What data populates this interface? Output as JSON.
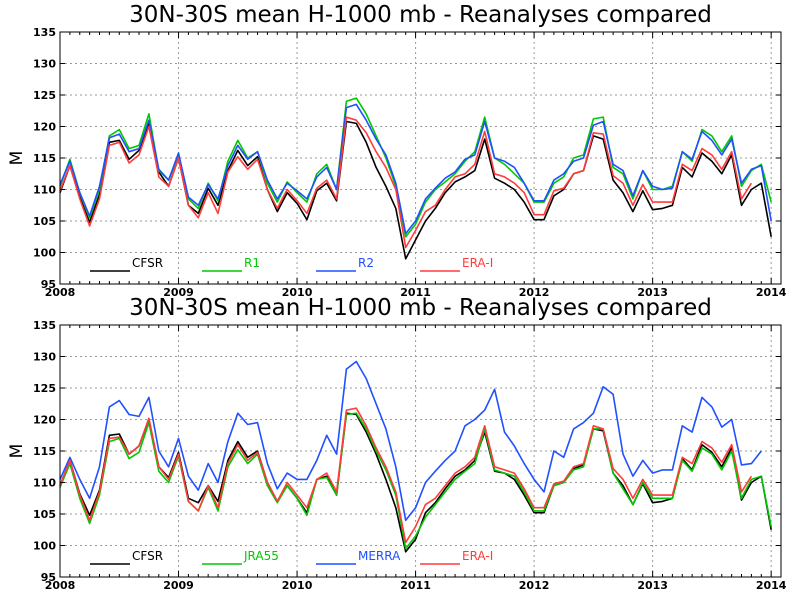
{
  "chart_data": [
    {
      "type": "line",
      "title": "30N-30S mean H-1000 mb - Reanalyses compared",
      "ylabel": "M",
      "xlabel": "",
      "ylim": [
        95,
        135
      ],
      "yticks": [
        95,
        100,
        105,
        110,
        115,
        120,
        125,
        130,
        135
      ],
      "xlim": [
        2008.0,
        2014.083
      ],
      "xticks": [
        2008,
        2009,
        2010,
        2011,
        2012,
        2013,
        2014
      ],
      "grid": true,
      "legend_position": "bottom-left",
      "x_start": 2008.0,
      "x_step_months": 1,
      "series": [
        {
          "name": "CFSR",
          "color": "#000000",
          "values": [
            109.5,
            113.8,
            108.8,
            104.8,
            109.2,
            117.5,
            117.8,
            114.8,
            116.2,
            120.5,
            112.8,
            110.5,
            115.0,
            107.5,
            106.2,
            110.2,
            107.5,
            113.0,
            116.2,
            113.8,
            115.2,
            110.0,
            106.5,
            109.5,
            107.8,
            105.2,
            109.8,
            111.0,
            108.2,
            120.8,
            120.5,
            117.5,
            113.5,
            110.5,
            107.0,
            99.0,
            102.0,
            105.0,
            107.0,
            109.5,
            111.2,
            112.0,
            113.0,
            118.0,
            111.8,
            111.0,
            110.0,
            108.0,
            105.2,
            105.2,
            109.0,
            110.0,
            112.5,
            113.0,
            118.5,
            118.0,
            111.5,
            109.5,
            106.5,
            109.8,
            106.8,
            107.0,
            107.5,
            113.5,
            112.0,
            115.8,
            114.5,
            112.5,
            115.5,
            107.5,
            110.0,
            111.0,
            102.5
          ]
        },
        {
          "name": "R1",
          "color": "#00c800",
          "values": [
            110.5,
            114.8,
            109.5,
            105.5,
            110.0,
            118.5,
            119.5,
            116.5,
            117.0,
            122.0,
            113.0,
            111.5,
            115.5,
            108.5,
            107.0,
            111.0,
            108.2,
            114.5,
            117.8,
            115.0,
            116.0,
            111.0,
            108.0,
            111.2,
            109.5,
            108.0,
            112.5,
            114.0,
            110.0,
            124.0,
            124.5,
            122.0,
            118.5,
            115.0,
            110.5,
            102.5,
            104.5,
            108.0,
            110.0,
            111.2,
            112.5,
            114.5,
            116.0,
            121.5,
            115.0,
            114.0,
            112.5,
            111.0,
            108.0,
            108.0,
            111.0,
            112.0,
            115.0,
            115.5,
            121.2,
            121.5,
            113.5,
            112.5,
            108.5,
            113.0,
            110.0,
            110.0,
            110.5,
            116.0,
            114.5,
            119.5,
            118.5,
            116.0,
            118.5,
            110.5,
            113.0,
            114.0,
            108.0
          ]
        },
        {
          "name": "R2",
          "color": "#2050ff",
          "values": [
            110.8,
            114.5,
            109.5,
            105.8,
            110.5,
            118.2,
            118.8,
            116.0,
            116.5,
            121.0,
            113.2,
            111.5,
            115.8,
            108.8,
            107.5,
            110.8,
            108.5,
            113.8,
            117.0,
            114.8,
            116.0,
            111.5,
            108.5,
            111.0,
            109.8,
            108.5,
            112.0,
            113.5,
            110.0,
            123.0,
            123.5,
            121.0,
            118.0,
            115.5,
            111.0,
            103.0,
            105.0,
            108.5,
            110.2,
            111.8,
            112.8,
            114.8,
            115.5,
            120.8,
            115.0,
            114.5,
            113.5,
            111.0,
            108.2,
            108.2,
            111.5,
            112.5,
            114.5,
            115.0,
            120.2,
            120.8,
            114.0,
            113.0,
            109.0,
            113.0,
            110.5,
            110.0,
            110.2,
            116.0,
            114.8,
            119.2,
            117.8,
            115.5,
            118.0,
            111.0,
            113.2,
            113.8,
            105.0
          ]
        },
        {
          "name": "ERA-I",
          "color": "#ff3c3c",
          "values": [
            109.8,
            113.8,
            108.5,
            104.2,
            108.5,
            117.0,
            117.5,
            114.2,
            115.5,
            120.0,
            112.0,
            110.5,
            115.0,
            107.5,
            105.5,
            109.5,
            106.2,
            112.8,
            115.2,
            113.2,
            114.8,
            110.0,
            107.0,
            110.0,
            108.2,
            106.2,
            110.2,
            111.5,
            108.5,
            121.5,
            121.0,
            119.0,
            116.0,
            113.5,
            110.0,
            100.8,
            103.5,
            106.5,
            107.5,
            110.0,
            112.0,
            112.5,
            114.0,
            119.2,
            112.5,
            112.0,
            111.0,
            109.5,
            106.0,
            106.0,
            109.8,
            110.2,
            112.5,
            113.0,
            119.0,
            118.8,
            112.2,
            111.0,
            107.5,
            110.8,
            108.0,
            108.0,
            108.0,
            114.0,
            113.0,
            116.5,
            115.5,
            113.2,
            116.0,
            108.5,
            111.0
          ]
        }
      ]
    },
    {
      "type": "line",
      "title": "30N-30S mean H-1000 mb - Reanalyses compared",
      "ylabel": "M",
      "xlabel": "",
      "ylim": [
        95,
        135
      ],
      "yticks": [
        95,
        100,
        105,
        110,
        115,
        120,
        125,
        130,
        135
      ],
      "xlim": [
        2008.0,
        2014.083
      ],
      "xticks": [
        2008,
        2009,
        2010,
        2011,
        2012,
        2013,
        2014
      ],
      "grid": true,
      "legend_position": "bottom-left",
      "x_start": 2008.0,
      "x_step_months": 1,
      "series": [
        {
          "name": "CFSR",
          "color": "#000000",
          "values": [
            109.5,
            113.5,
            108.2,
            104.8,
            108.8,
            117.5,
            117.7,
            114.5,
            115.8,
            120.0,
            112.5,
            110.8,
            114.8,
            107.5,
            106.8,
            109.5,
            107.0,
            113.5,
            116.5,
            114.0,
            115.0,
            110.0,
            107.0,
            109.5,
            107.5,
            105.2,
            110.5,
            111.0,
            108.0,
            121.0,
            120.8,
            118.0,
            114.5,
            110.5,
            106.0,
            99.0,
            101.0,
            105.2,
            106.8,
            109.0,
            111.0,
            112.0,
            113.5,
            118.0,
            111.8,
            111.5,
            110.5,
            108.0,
            105.2,
            105.2,
            109.5,
            110.0,
            112.2,
            112.8,
            118.5,
            118.2,
            111.5,
            109.5,
            106.5,
            109.8,
            106.8,
            107.0,
            107.5,
            113.8,
            112.0,
            116.0,
            114.8,
            112.5,
            115.5,
            107.2,
            110.0,
            111.0,
            102.5
          ]
        },
        {
          "name": "JRA55",
          "color": "#00c800",
          "values": [
            109.2,
            113.0,
            107.5,
            103.5,
            108.0,
            116.5,
            117.0,
            113.8,
            114.8,
            119.5,
            111.8,
            110.0,
            114.2,
            107.0,
            105.5,
            109.2,
            105.5,
            112.5,
            115.2,
            113.0,
            114.5,
            109.5,
            106.8,
            109.5,
            107.5,
            104.8,
            110.5,
            110.8,
            108.0,
            120.8,
            121.0,
            118.5,
            115.0,
            112.0,
            108.0,
            99.5,
            101.5,
            104.5,
            106.5,
            108.5,
            110.5,
            111.8,
            113.0,
            118.5,
            112.0,
            111.5,
            111.0,
            108.5,
            105.5,
            105.5,
            109.5,
            110.0,
            112.0,
            112.5,
            118.5,
            118.5,
            111.5,
            109.0,
            106.5,
            110.0,
            107.5,
            107.5,
            107.5,
            113.5,
            111.8,
            115.5,
            114.5,
            112.0,
            115.0,
            107.5,
            110.5,
            111.0,
            103.0
          ]
        },
        {
          "name": "MERRA",
          "color": "#2050ff",
          "values": [
            110.5,
            114.0,
            110.5,
            107.5,
            112.5,
            122.0,
            123.0,
            120.8,
            120.5,
            123.5,
            115.0,
            112.5,
            117.0,
            111.0,
            108.8,
            113.0,
            110.0,
            116.5,
            121.0,
            119.2,
            119.5,
            113.0,
            109.0,
            111.5,
            110.5,
            110.5,
            113.5,
            117.5,
            114.5,
            128.0,
            129.2,
            126.5,
            122.5,
            118.5,
            112.5,
            104.0,
            106.0,
            110.0,
            111.8,
            113.5,
            115.0,
            119.0,
            120.0,
            121.5,
            124.8,
            118.0,
            115.8,
            113.0,
            110.5,
            108.5,
            115.0,
            114.0,
            118.5,
            119.5,
            121.0,
            125.2,
            124.0,
            114.5,
            111.0,
            113.5,
            111.5,
            112.0,
            112.0,
            119.0,
            118.0,
            123.5,
            122.0,
            118.8,
            120.0,
            112.8,
            113.0,
            115.0
          ]
        },
        {
          "name": "ERA-I",
          "color": "#ff3c3c",
          "values": [
            109.5,
            113.5,
            108.0,
            104.0,
            108.5,
            117.0,
            117.2,
            114.5,
            115.8,
            120.2,
            112.5,
            110.5,
            114.5,
            107.0,
            105.5,
            109.5,
            106.0,
            113.0,
            116.0,
            113.5,
            114.8,
            110.0,
            107.0,
            110.0,
            108.0,
            106.0,
            110.5,
            111.5,
            108.5,
            121.5,
            121.8,
            119.0,
            115.5,
            112.5,
            108.5,
            100.5,
            103.0,
            106.5,
            107.5,
            109.5,
            111.5,
            112.5,
            114.0,
            119.0,
            112.5,
            112.0,
            111.5,
            109.0,
            106.0,
            106.0,
            109.8,
            110.2,
            112.5,
            113.0,
            119.0,
            118.5,
            112.2,
            110.5,
            107.5,
            110.5,
            108.0,
            108.0,
            108.0,
            114.0,
            113.0,
            116.5,
            115.5,
            113.2,
            116.0,
            108.5,
            111.0
          ]
        }
      ]
    }
  ]
}
